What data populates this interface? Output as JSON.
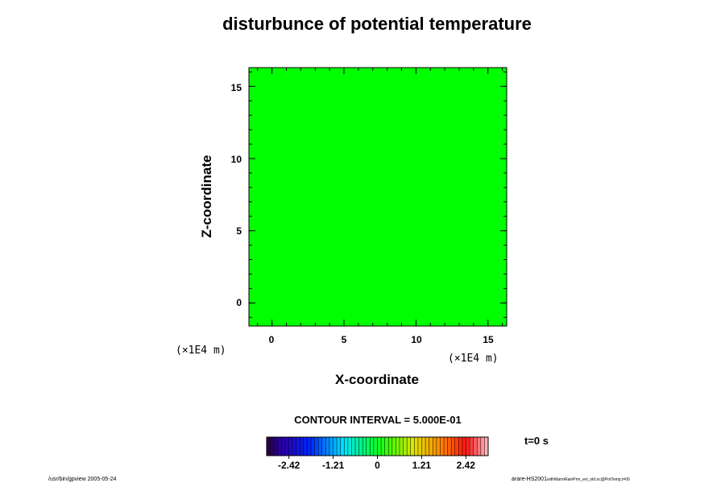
{
  "chart_data": {
    "type": "heatmap",
    "title": "disturbunce of potential temperature",
    "xlabel": "X-coordinate",
    "ylabel": "Z-coordinate",
    "x_unit": "(×1E4 m)",
    "y_unit": "(×1E4 m)",
    "xlim": [
      -1.6,
      16.3
    ],
    "ylim": [
      -1.6,
      16.3
    ],
    "x_ticks": [
      0,
      5,
      10,
      15
    ],
    "y_ticks": [
      0,
      5,
      10,
      15
    ],
    "field_value": 0,
    "field_color": "#00ff00",
    "contour_interval_text": "CONTOUR INTERVAL = 5.000E-01",
    "time_text": "t=0 s",
    "colorbar": {
      "range": [
        -3.03,
        3.03
      ],
      "tick_values": [
        -2.42,
        -1.21,
        0,
        1.21,
        2.42
      ],
      "tick_labels": [
        "-2.42",
        "-1.21",
        "0",
        "1.21",
        "2.42"
      ],
      "colormap": "rainbow"
    },
    "footer_left": "/usr/bin/gpview 2005-05-24",
    "footer_right_main": "arare-HS2001",
    "footer_right_sub": "withWarmRainPrm_evl_old.nc@PotTemp,t=00"
  }
}
